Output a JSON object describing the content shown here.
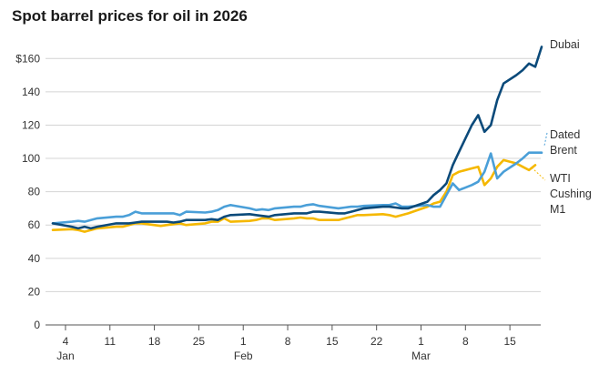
{
  "chart_data": {
    "type": "line",
    "title": "Spot barrel prices for oil in 2026",
    "ylim": [
      0,
      170
    ],
    "yticks": [
      0,
      20,
      40,
      60,
      80,
      100,
      120,
      140,
      160
    ],
    "ytick_labels": [
      "0",
      "20",
      "40",
      "60",
      "80",
      "100",
      "120",
      "140",
      "$160"
    ],
    "xlim": [
      "2026-01-02",
      "2026-03-20"
    ],
    "xticks": [
      {
        "date": "2026-01-04",
        "label": "4",
        "month": "Jan"
      },
      {
        "date": "2026-01-11",
        "label": "11",
        "month": ""
      },
      {
        "date": "2026-01-18",
        "label": "18",
        "month": ""
      },
      {
        "date": "2026-01-25",
        "label": "25",
        "month": ""
      },
      {
        "date": "2026-02-01",
        "label": "1",
        "month": "Feb"
      },
      {
        "date": "2026-02-08",
        "label": "8",
        "month": ""
      },
      {
        "date": "2026-02-15",
        "label": "15",
        "month": ""
      },
      {
        "date": "2026-02-22",
        "label": "22",
        "month": ""
      },
      {
        "date": "2026-03-01",
        "label": "1",
        "month": "Mar"
      },
      {
        "date": "2026-03-08",
        "label": "8",
        "month": ""
      },
      {
        "date": "2026-03-15",
        "label": "15",
        "month": ""
      }
    ],
    "grid": "horizontal",
    "legend": "right-end labels",
    "series": [
      {
        "name": "Dubai",
        "label_lines": [
          "Dubai"
        ],
        "color": "#0b4a7a",
        "points": [
          [
            "2026-01-02",
            61
          ],
          [
            "2026-01-05",
            59
          ],
          [
            "2026-01-06",
            58
          ],
          [
            "2026-01-07",
            59
          ],
          [
            "2026-01-08",
            58
          ],
          [
            "2026-01-09",
            59
          ],
          [
            "2026-01-12",
            61
          ],
          [
            "2026-01-13",
            61
          ],
          [
            "2026-01-14",
            61
          ],
          [
            "2026-01-15",
            61.5
          ],
          [
            "2026-01-16",
            62
          ],
          [
            "2026-01-19",
            62
          ],
          [
            "2026-01-20",
            62
          ],
          [
            "2026-01-21",
            61.5
          ],
          [
            "2026-01-22",
            62
          ],
          [
            "2026-01-23",
            63
          ],
          [
            "2026-01-26",
            63
          ],
          [
            "2026-01-27",
            63.5
          ],
          [
            "2026-01-28",
            63
          ],
          [
            "2026-01-29",
            65
          ],
          [
            "2026-01-30",
            66
          ],
          [
            "2026-02-02",
            66.5
          ],
          [
            "2026-02-03",
            66
          ],
          [
            "2026-02-04",
            65.5
          ],
          [
            "2026-02-05",
            65
          ],
          [
            "2026-02-06",
            66
          ],
          [
            "2026-02-09",
            67
          ],
          [
            "2026-02-10",
            67
          ],
          [
            "2026-02-11",
            67
          ],
          [
            "2026-02-12",
            68
          ],
          [
            "2026-02-13",
            68
          ],
          [
            "2026-02-16",
            67
          ],
          [
            "2026-02-17",
            67
          ],
          [
            "2026-02-18",
            68
          ],
          [
            "2026-02-19",
            69
          ],
          [
            "2026-02-20",
            70
          ],
          [
            "2026-02-23",
            71
          ],
          [
            "2026-02-24",
            71
          ],
          [
            "2026-02-25",
            70.5
          ],
          [
            "2026-02-26",
            70
          ],
          [
            "2026-02-27",
            70
          ],
          [
            "2026-03-02",
            74
          ],
          [
            "2026-03-03",
            78
          ],
          [
            "2026-03-04",
            81
          ],
          [
            "2026-03-05",
            85
          ],
          [
            "2026-03-06",
            96
          ],
          [
            "2026-03-07",
            104
          ],
          [
            "2026-03-08",
            112
          ],
          [
            "2026-03-09",
            120
          ],
          [
            "2026-03-10",
            126
          ],
          [
            "2026-03-11",
            116
          ],
          [
            "2026-03-12",
            120
          ],
          [
            "2026-03-13",
            135
          ],
          [
            "2026-03-14",
            145
          ],
          [
            "2026-03-16",
            150
          ],
          [
            "2026-03-17",
            153
          ],
          [
            "2026-03-18",
            157
          ],
          [
            "2026-03-19",
            155
          ],
          [
            "2026-03-20",
            167
          ]
        ]
      },
      {
        "name": "Dated Brent",
        "label_lines": [
          "Dated",
          "Brent"
        ],
        "color": "#4a9fd8",
        "points": [
          [
            "2026-01-02",
            61
          ],
          [
            "2026-01-05",
            62
          ],
          [
            "2026-01-06",
            62.5
          ],
          [
            "2026-01-07",
            62
          ],
          [
            "2026-01-08",
            63
          ],
          [
            "2026-01-09",
            64
          ],
          [
            "2026-01-12",
            65
          ],
          [
            "2026-01-13",
            65
          ],
          [
            "2026-01-14",
            66
          ],
          [
            "2026-01-15",
            68
          ],
          [
            "2026-01-16",
            67
          ],
          [
            "2026-01-19",
            67
          ],
          [
            "2026-01-20",
            67
          ],
          [
            "2026-01-21",
            67
          ],
          [
            "2026-01-22",
            66
          ],
          [
            "2026-01-23",
            68
          ],
          [
            "2026-01-26",
            67.5
          ],
          [
            "2026-01-27",
            68
          ],
          [
            "2026-01-28",
            69
          ],
          [
            "2026-01-29",
            71
          ],
          [
            "2026-01-30",
            72
          ],
          [
            "2026-02-02",
            70
          ],
          [
            "2026-02-03",
            69
          ],
          [
            "2026-02-04",
            69.5
          ],
          [
            "2026-02-05",
            69
          ],
          [
            "2026-02-06",
            70
          ],
          [
            "2026-02-09",
            71
          ],
          [
            "2026-02-10",
            71
          ],
          [
            "2026-02-11",
            72
          ],
          [
            "2026-02-12",
            72.5
          ],
          [
            "2026-02-13",
            71.5
          ],
          [
            "2026-02-16",
            70
          ],
          [
            "2026-02-17",
            70.5
          ],
          [
            "2026-02-18",
            71
          ],
          [
            "2026-02-19",
            71
          ],
          [
            "2026-02-20",
            71.5
          ],
          [
            "2026-02-23",
            72
          ],
          [
            "2026-02-24",
            72
          ],
          [
            "2026-02-25",
            73
          ],
          [
            "2026-02-26",
            71
          ],
          [
            "2026-02-27",
            71
          ],
          [
            "2026-03-02",
            72
          ],
          [
            "2026-03-03",
            71
          ],
          [
            "2026-03-04",
            71
          ],
          [
            "2026-03-05",
            78
          ],
          [
            "2026-03-06",
            85
          ],
          [
            "2026-03-07",
            81
          ],
          [
            "2026-03-09",
            84
          ],
          [
            "2026-03-10",
            86
          ],
          [
            "2026-03-11",
            92
          ],
          [
            "2026-03-12",
            103
          ],
          [
            "2026-03-13",
            88
          ],
          [
            "2026-03-14",
            92
          ],
          [
            "2026-03-16",
            97
          ],
          [
            "2026-03-17",
            100
          ],
          [
            "2026-03-18",
            103.5
          ],
          [
            "2026-03-20",
            103.5
          ]
        ]
      },
      {
        "name": "WTI Cushing M1",
        "label_lines": [
          "WTI",
          "Cushing",
          "M1"
        ],
        "color": "#f5b800",
        "points": [
          [
            "2026-01-02",
            57
          ],
          [
            "2026-01-05",
            57.5
          ],
          [
            "2026-01-06",
            57
          ],
          [
            "2026-01-07",
            56
          ],
          [
            "2026-01-08",
            57
          ],
          [
            "2026-01-09",
            58
          ],
          [
            "2026-01-12",
            59
          ],
          [
            "2026-01-13",
            59
          ],
          [
            "2026-01-14",
            60
          ],
          [
            "2026-01-15",
            61
          ],
          [
            "2026-01-16",
            61
          ],
          [
            "2026-01-19",
            59.5
          ],
          [
            "2026-01-20",
            60
          ],
          [
            "2026-01-21",
            60.5
          ],
          [
            "2026-01-22",
            61
          ],
          [
            "2026-01-23",
            60
          ],
          [
            "2026-01-26",
            61
          ],
          [
            "2026-01-27",
            62
          ],
          [
            "2026-01-28",
            62
          ],
          [
            "2026-01-29",
            64
          ],
          [
            "2026-01-30",
            62
          ],
          [
            "2026-02-02",
            62.5
          ],
          [
            "2026-02-03",
            63
          ],
          [
            "2026-02-04",
            64
          ],
          [
            "2026-02-05",
            64
          ],
          [
            "2026-02-06",
            63
          ],
          [
            "2026-02-09",
            64
          ],
          [
            "2026-02-10",
            64.5
          ],
          [
            "2026-02-11",
            64
          ],
          [
            "2026-02-12",
            64
          ],
          [
            "2026-02-13",
            63
          ],
          [
            "2026-02-16",
            63
          ],
          [
            "2026-02-17",
            64
          ],
          [
            "2026-02-18",
            65
          ],
          [
            "2026-02-19",
            66
          ],
          [
            "2026-02-20",
            66
          ],
          [
            "2026-02-23",
            66.5
          ],
          [
            "2026-02-24",
            66
          ],
          [
            "2026-02-25",
            65
          ],
          [
            "2026-02-26",
            66
          ],
          [
            "2026-02-27",
            67
          ],
          [
            "2026-03-02",
            71
          ],
          [
            "2026-03-03",
            73
          ],
          [
            "2026-03-04",
            74
          ],
          [
            "2026-03-05",
            80
          ],
          [
            "2026-03-06",
            90
          ],
          [
            "2026-03-07",
            92
          ],
          [
            "2026-03-09",
            94
          ],
          [
            "2026-03-10",
            95
          ],
          [
            "2026-03-11",
            84
          ],
          [
            "2026-03-12",
            88
          ],
          [
            "2026-03-13",
            95
          ],
          [
            "2026-03-14",
            99
          ],
          [
            "2026-03-16",
            97
          ],
          [
            "2026-03-17",
            95
          ],
          [
            "2026-03-18",
            93
          ],
          [
            "2026-03-19",
            96
          ]
        ]
      }
    ]
  }
}
